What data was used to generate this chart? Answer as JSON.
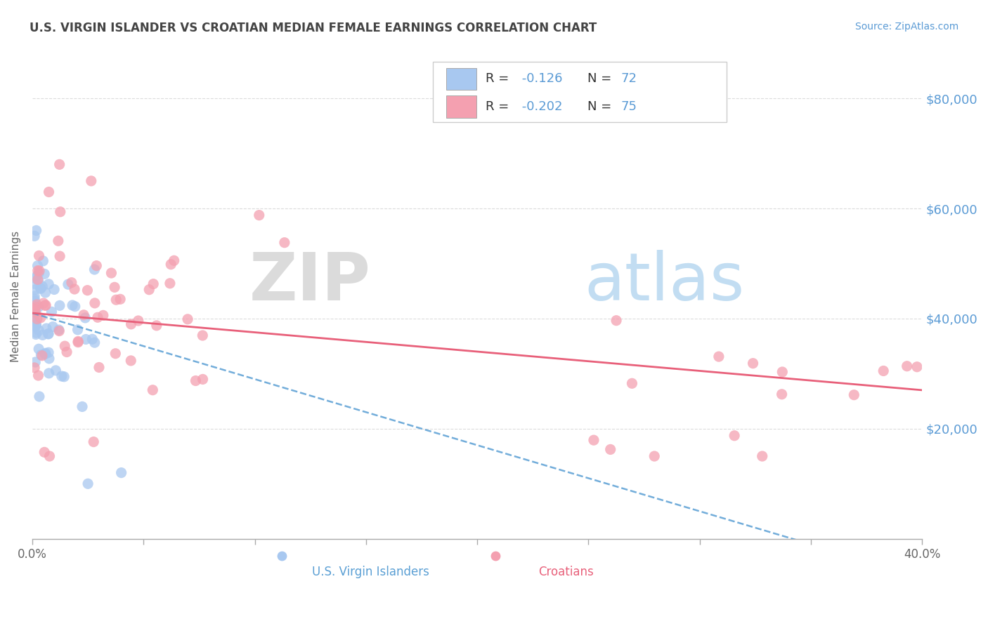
{
  "title": "U.S. VIRGIN ISLANDER VS CROATIAN MEDIAN FEMALE EARNINGS CORRELATION CHART",
  "source": "Source: ZipAtlas.com",
  "ylabel": "Median Female Earnings",
  "ytick_labels": [
    "$20,000",
    "$40,000",
    "$60,000",
    "$80,000"
  ],
  "ytick_values": [
    20000,
    40000,
    60000,
    80000
  ],
  "xlim": [
    0.0,
    0.4
  ],
  "ylim": [
    0,
    88000
  ],
  "xtick_positions": [
    0.0,
    0.05,
    0.1,
    0.15,
    0.2,
    0.25,
    0.3,
    0.35,
    0.4
  ],
  "xtick_labels_show": [
    "0.0%",
    "",
    "",
    "",
    "",
    "",
    "",
    "",
    "40.0%"
  ],
  "watermark": "ZIPatlas",
  "r_usvi": -0.126,
  "n_usvi": 72,
  "r_croatian": -0.202,
  "n_croatian": 75,
  "usvi_color": "#a8c8f0",
  "croatian_color": "#f4a0b0",
  "usvi_line_color": "#5a9fd4",
  "croatian_line_color": "#e8607a",
  "title_color": "#444444",
  "source_color": "#5b9bd5",
  "ylabel_color": "#666666",
  "ytick_color": "#5b9bd5",
  "xtick_color": "#666666",
  "grid_color": "#cccccc",
  "legend_r_n_color": "#5b9bd5",
  "usvi_trend_intercept": 41000,
  "usvi_trend_slope": -120000,
  "croatian_trend_intercept": 41000,
  "croatian_trend_slope": -35000
}
